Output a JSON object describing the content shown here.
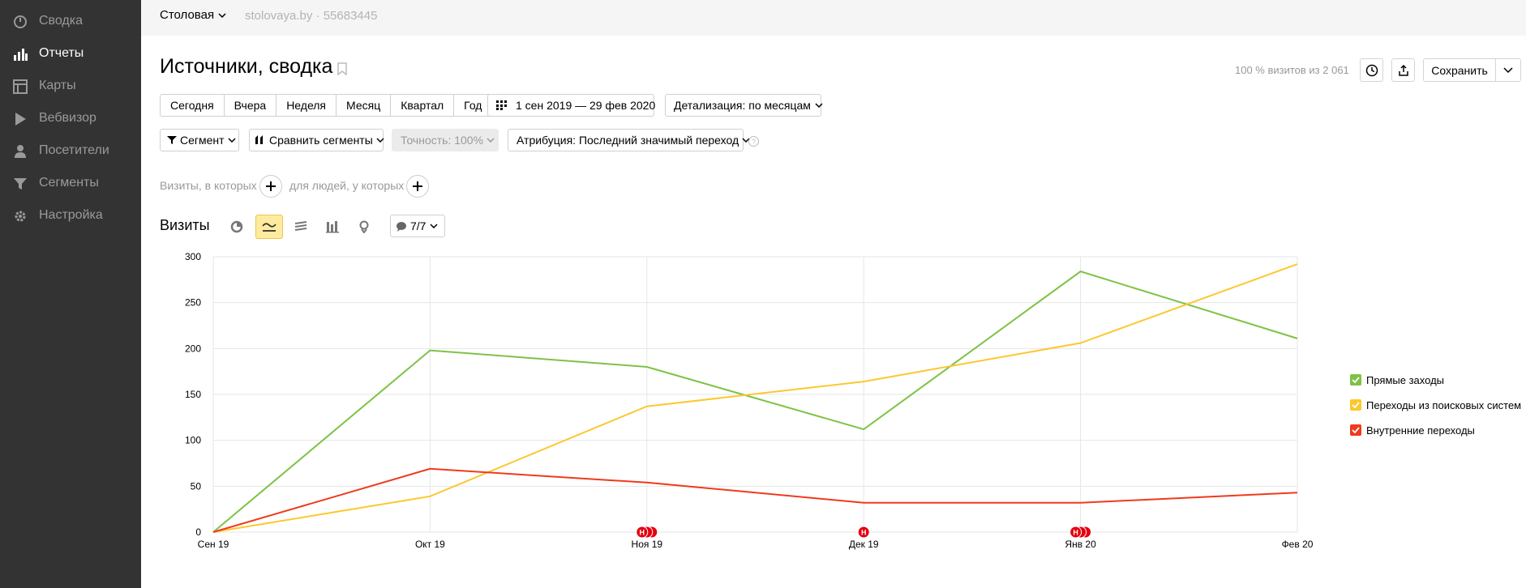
{
  "sidebar": {
    "items": [
      {
        "label": "Сводка",
        "icon": "gauge-icon",
        "active": false
      },
      {
        "label": "Отчеты",
        "icon": "bar-chart-icon",
        "active": true
      },
      {
        "label": "Карты",
        "icon": "map-layout-icon",
        "active": false
      },
      {
        "label": "Вебвизор",
        "icon": "play-icon",
        "active": false
      },
      {
        "label": "Посетители",
        "icon": "user-icon",
        "active": false
      },
      {
        "label": "Сегменты",
        "icon": "funnel-icon",
        "active": false
      },
      {
        "label": "Настройка",
        "icon": "gear-icon",
        "active": false
      }
    ]
  },
  "topbar": {
    "counter_name": "Столовая",
    "site_info": "stolovaya.by · 55683445"
  },
  "header": {
    "title": "Источники, сводка",
    "visits_pct": "100 % визитов из 2 061",
    "save_label": "Сохранить"
  },
  "period": {
    "buttons": [
      "Сегодня",
      "Вчера",
      "Неделя",
      "Месяц",
      "Квартал",
      "Год"
    ],
    "date_range": "1 сен 2019 — 29 фев 2020",
    "detail": "Детализация: по месяцам"
  },
  "filters": {
    "segment": "Сегмент",
    "compare": "Сравнить сегменты",
    "accuracy": "Точность: 100%",
    "attribution": "Атрибуция: Последний значимый переход",
    "help": "?",
    "visits_where": "Визиты, в которых",
    "people_where": "для людей, у которых"
  },
  "chart_controls": {
    "title": "Визиты",
    "series_count": "7/7"
  },
  "colors": {
    "direct": "#7ec245",
    "search": "#fdc72e",
    "internal": "#ef3a1d",
    "annotation": "#e4000f"
  },
  "chart_data": {
    "type": "line",
    "title": "Визиты",
    "categories": [
      "Сен 19",
      "Окт 19",
      "Ноя 19",
      "Дек 19",
      "Янв 20",
      "Фев 20"
    ],
    "ylim": [
      0,
      300
    ],
    "yticks": [
      0,
      50,
      100,
      150,
      200,
      250,
      300
    ],
    "grid": true,
    "legend": "right",
    "series": [
      {
        "name": "Прямые заходы",
        "color": "#7ec245",
        "values": [
          0,
          198,
          180,
          112,
          284,
          211
        ]
      },
      {
        "name": "Переходы из поисковых систем",
        "color": "#fdc72e",
        "values": [
          0,
          39,
          137,
          164,
          206,
          292
        ]
      },
      {
        "name": "Внутренние переходы",
        "color": "#ef3a1d",
        "values": [
          0,
          69,
          54,
          32,
          32,
          43
        ]
      }
    ],
    "annotations": [
      {
        "category": "Ноя 19",
        "label": "Н",
        "count": 3
      },
      {
        "category": "Дек 19",
        "label": "Н",
        "count": 1
      },
      {
        "category": "Янв 20",
        "label": "Н",
        "count": 3
      }
    ]
  }
}
